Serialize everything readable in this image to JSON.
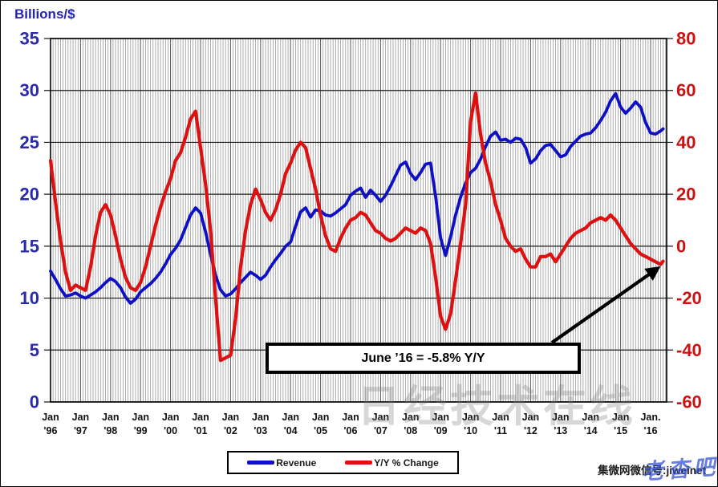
{
  "left_axis_title": "Billions/$",
  "annotation": {
    "text": "June ’16 = -5.8% Y/Y"
  },
  "legend": {
    "items": [
      {
        "label": "Revenue",
        "color": "#0f10c5"
      },
      {
        "label": "Y/Y % Change",
        "color": "#dd1111"
      }
    ]
  },
  "watermarks": {
    "center": "日经技术在线",
    "source": "集微网微信号:jiweinet",
    "signature": "老杳吧"
  },
  "chart_data": {
    "type": "line",
    "title": "",
    "x_start": "Jan 1996",
    "x_end": "Jun 2016",
    "x_step_months": 2,
    "left_axis": {
      "title": "Billions/$",
      "ticks": [
        35,
        30,
        25,
        20,
        15,
        10,
        5,
        0
      ],
      "range": [
        0,
        35
      ],
      "color": "#2a2aaa"
    },
    "right_axis": {
      "ticks": [
        80,
        60,
        40,
        20,
        0,
        -20,
        -40,
        -60
      ],
      "range": [
        -60,
        80
      ],
      "color": "#cc1111"
    },
    "x_axis": {
      "tick_month": "Jan",
      "tick_month_last": "Jan.",
      "years": [
        "'96",
        "'97",
        "'98",
        "'99",
        "'00",
        "'01",
        "'02",
        "'03",
        "'04",
        "'05",
        "'06",
        "'07",
        "'08",
        "'09",
        "'10",
        "'11",
        "'12",
        "'13",
        "'14",
        "'15",
        "'16"
      ]
    },
    "grid": {
      "x_minor_every_months": 1,
      "x_major_every_months": 12,
      "grid_on": true
    },
    "legend_position": "bottom",
    "annotation_text": "June '16 = -5.8% Y/Y",
    "series": [
      {
        "name": "Revenue",
        "axis": "left",
        "color": "#0f10c5",
        "unit": "billions USD, 3-month average",
        "values": [
          12.6,
          11.8,
          10.9,
          10.2,
          10.3,
          10.5,
          10.2,
          10.0,
          10.3,
          10.6,
          11.0,
          11.5,
          11.9,
          11.6,
          11.0,
          10.1,
          9.5,
          9.9,
          10.6,
          11.0,
          11.4,
          11.9,
          12.5,
          13.3,
          14.2,
          14.8,
          15.6,
          16.8,
          18.0,
          18.7,
          18.2,
          16.4,
          14.2,
          12.2,
          10.8,
          10.2,
          10.4,
          10.9,
          11.5,
          12.0,
          12.5,
          12.2,
          11.8,
          12.2,
          13.0,
          13.7,
          14.3,
          15.0,
          15.4,
          16.9,
          18.3,
          18.7,
          17.8,
          18.5,
          18.4,
          18.0,
          17.9,
          18.2,
          18.6,
          19.0,
          19.9,
          20.3,
          20.6,
          19.7,
          20.4,
          19.9,
          19.3,
          19.9,
          20.8,
          21.8,
          22.8,
          23.1,
          22.0,
          21.4,
          22.1,
          22.9,
          23.0,
          19.8,
          15.8,
          14.1,
          15.9,
          18.0,
          19.7,
          21.1,
          22.1,
          22.5,
          23.4,
          24.6,
          25.6,
          26.0,
          25.2,
          25.3,
          25.0,
          25.4,
          25.3,
          24.5,
          23.0,
          23.4,
          24.2,
          24.7,
          24.8,
          24.2,
          23.6,
          23.8,
          24.6,
          25.1,
          25.6,
          25.8,
          25.9,
          26.4,
          27.1,
          27.9,
          29.0,
          29.7,
          28.4,
          27.8,
          28.3,
          28.9,
          28.4,
          26.9,
          25.9,
          25.8,
          26.1,
          26.3
        ]
      },
      {
        "name": "Y/Y % Change",
        "axis": "right",
        "color": "#dd1111",
        "unit": "percent",
        "values": [
          33,
          17,
          2,
          -10,
          -17,
          -15,
          -16,
          -17,
          -8,
          4,
          13,
          16,
          12,
          4,
          -5,
          -12,
          -16,
          -17,
          -14,
          -8,
          0,
          8,
          15,
          21,
          26,
          33,
          36,
          42,
          49,
          52,
          38,
          24,
          6,
          -20,
          -44,
          -43,
          -42,
          -28,
          -8,
          6,
          16,
          22,
          18,
          13,
          10,
          14,
          20,
          28,
          32,
          37,
          40,
          38,
          30,
          22,
          12,
          4,
          -1,
          -2,
          3,
          7,
          10,
          11,
          13,
          12,
          9,
          6,
          5,
          3,
          2,
          3,
          5,
          7,
          6,
          5,
          7,
          6,
          1,
          -12,
          -27,
          -32,
          -26,
          -13,
          1,
          16,
          48,
          59,
          43,
          32,
          25,
          16,
          10,
          3,
          0,
          -2,
          -1,
          -5,
          -8,
          -8,
          -4,
          -4,
          -3,
          -6,
          -3,
          0,
          3,
          5,
          6,
          7,
          9,
          10,
          11,
          10,
          12,
          10,
          7,
          4,
          1,
          -1,
          -3,
          -4,
          -5,
          -6,
          -7,
          -5.8
        ]
      }
    ]
  }
}
